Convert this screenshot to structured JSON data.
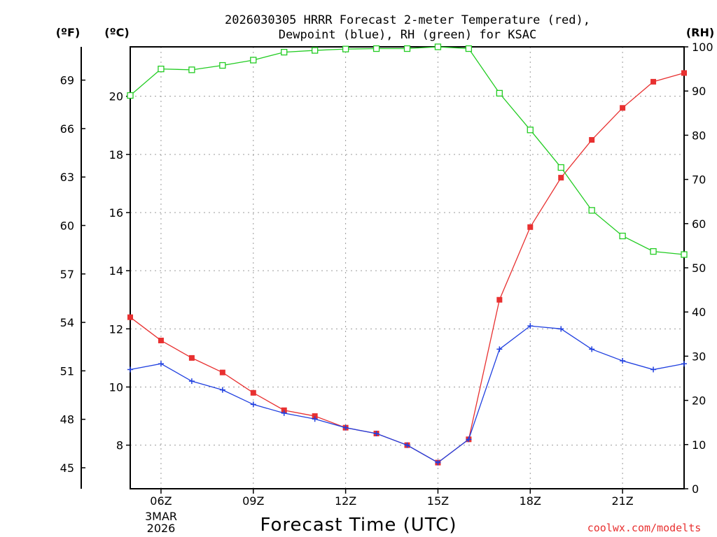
{
  "chart_data": {
    "type": "line",
    "title_line1": "2026030305 HRRR Forecast 2-meter Temperature (red),",
    "title_line2": "Dewpoint (blue), RH (green) for KSAC",
    "xlabel": "Forecast Time (UTC)",
    "credit": "coolwx.com/modelts",
    "left_unit_f": "(ºF)",
    "left_unit_c": "(ºC)",
    "right_unit": "(RH)",
    "x_date_line1": "3MAR",
    "x_date_line2": "2026",
    "x_range": [
      5,
      23
    ],
    "x_ticks": [
      6,
      9,
      12,
      15,
      18,
      21
    ],
    "x_tick_labels": [
      "06Z",
      "09Z",
      "12Z",
      "15Z",
      "18Z",
      "21Z"
    ],
    "x": [
      5,
      6,
      7,
      8,
      9,
      10,
      11,
      12,
      13,
      14,
      15,
      16,
      17,
      18,
      19,
      20,
      21,
      22,
      23
    ],
    "ylim_c": [
      6.5,
      21.7
    ],
    "yticks_c": [
      8,
      10,
      12,
      14,
      16,
      18,
      20
    ],
    "yticks_f": [
      45,
      48,
      51,
      54,
      57,
      60,
      63,
      66,
      69
    ],
    "ylim_rh": [
      0,
      100
    ],
    "yticks_rh": [
      0,
      10,
      20,
      30,
      40,
      50,
      60,
      70,
      80,
      90,
      100
    ],
    "series": [
      {
        "name": "2-meter Temperature",
        "axis": "c",
        "color": "#e83030",
        "marker": "square-filled",
        "values": [
          12.4,
          11.6,
          11.0,
          10.5,
          9.8,
          9.2,
          9.0,
          8.6,
          8.4,
          8.0,
          7.4,
          8.2,
          13.0,
          15.5,
          17.2,
          18.5,
          19.6,
          20.5,
          20.8
        ]
      },
      {
        "name": "Dewpoint",
        "axis": "c",
        "color": "#2040e0",
        "marker": "plus",
        "values": [
          10.6,
          10.8,
          10.2,
          9.9,
          9.4,
          9.1,
          8.9,
          8.6,
          8.4,
          8.0,
          7.4,
          8.2,
          11.3,
          12.1,
          12.0,
          11.3,
          10.9,
          10.6,
          10.8
        ]
      },
      {
        "name": "RH",
        "axis": "rh",
        "color": "#22cc22",
        "marker": "square-open",
        "values": [
          89,
          95,
          94.8,
          95.8,
          97,
          98.8,
          99.2,
          99.5,
          99.6,
          99.6,
          100,
          99.6,
          89.5,
          81.2,
          72.7,
          63,
          57.2,
          53.7,
          53
        ]
      }
    ]
  }
}
